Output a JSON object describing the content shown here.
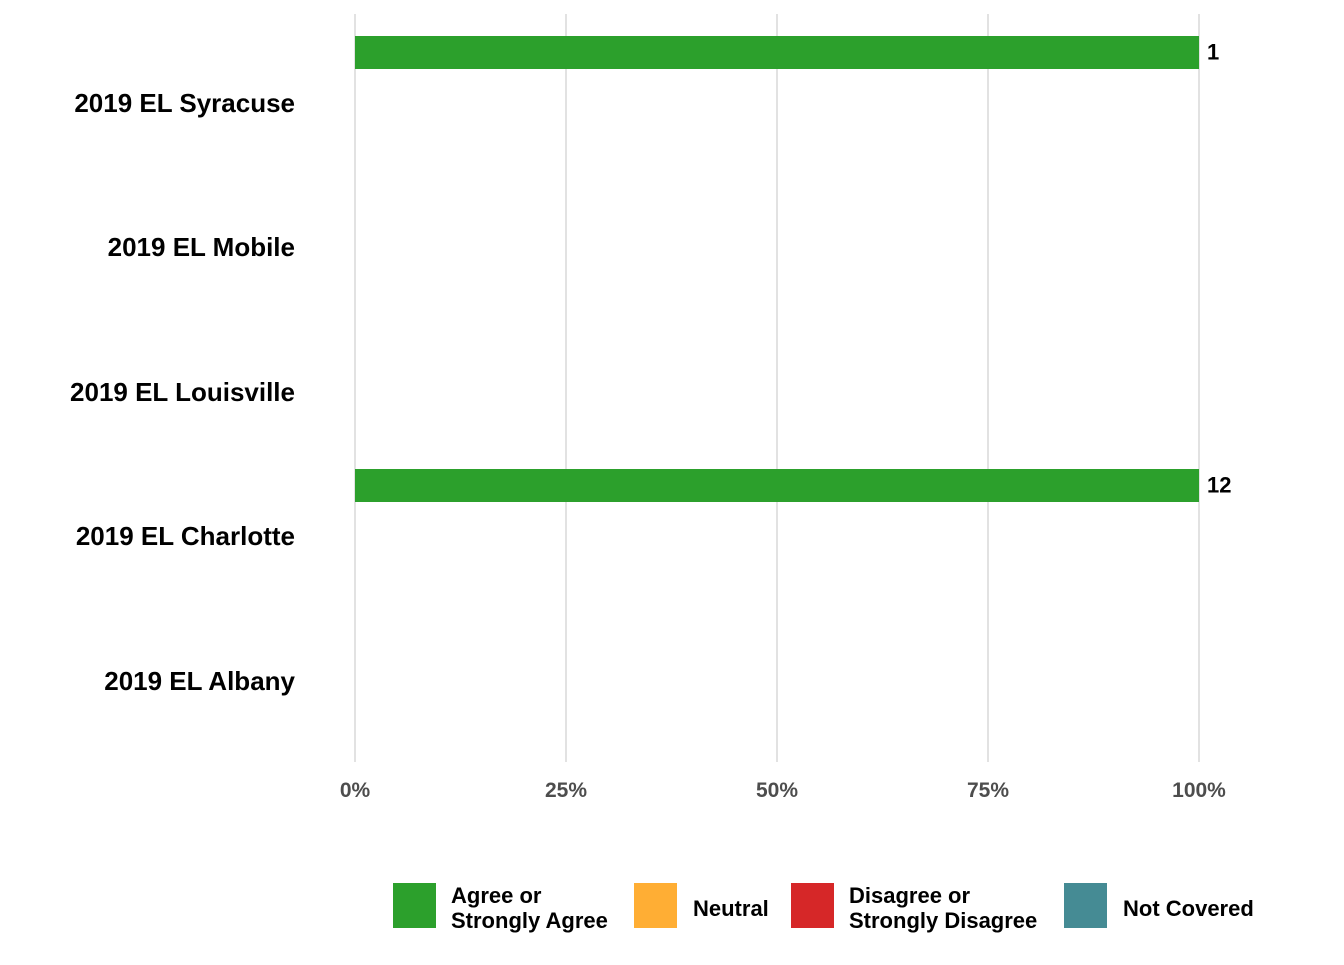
{
  "chart_data": {
    "type": "bar",
    "orientation": "horizontal",
    "stacked": true,
    "categories": [
      "2019 EL Syracuse",
      "2019 EL Mobile",
      "2019 EL Louisville",
      "2019 EL Charlotte",
      "2019 EL Albany"
    ],
    "series": [
      {
        "name": "Agree or Strongly Agree",
        "color": "#2ca02c",
        "values": [
          100,
          0,
          0,
          100,
          0
        ],
        "labels": [
          "1",
          "",
          "",
          "12",
          ""
        ]
      },
      {
        "name": "Neutral",
        "color": "#ffae34",
        "values": [
          0,
          0,
          0,
          0,
          0
        ],
        "labels": [
          "",
          "",
          "",
          "",
          ""
        ]
      },
      {
        "name": "Disagree or Strongly Disagree",
        "color": "#d62728",
        "values": [
          0,
          0,
          0,
          0,
          0
        ],
        "labels": [
          "",
          "",
          "",
          "",
          ""
        ]
      },
      {
        "name": "Not Covered",
        "color": "#458b94",
        "values": [
          0,
          0,
          0,
          0,
          0
        ],
        "labels": [
          "",
          "",
          "",
          "",
          ""
        ]
      }
    ],
    "xlim": [
      0,
      100
    ],
    "xticks": [
      0,
      25,
      50,
      75,
      100
    ],
    "xtick_labels": [
      "0%",
      "25%",
      "50%",
      "75%",
      "100%"
    ],
    "title": "",
    "xlabel": "",
    "ylabel": "",
    "grid": "vertical",
    "legend_position": "bottom",
    "legend_labels": [
      [
        "Agree or",
        "Strongly Agree"
      ],
      [
        "Neutral"
      ],
      [
        "Disagree or",
        "Strongly Disagree"
      ],
      [
        "Not Covered"
      ]
    ]
  }
}
